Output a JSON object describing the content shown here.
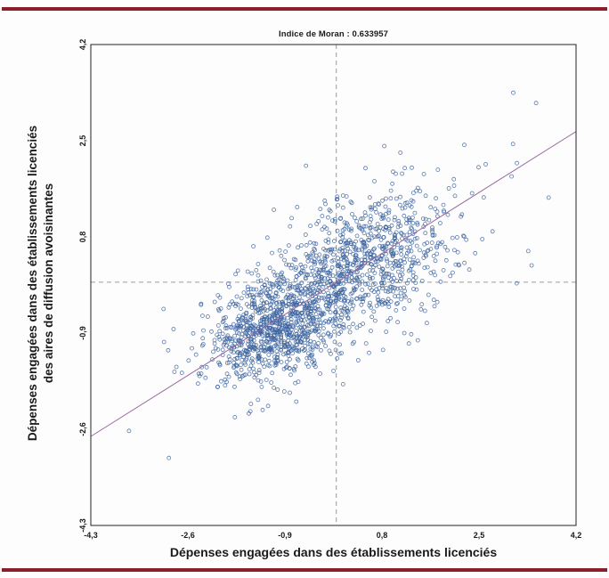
{
  "figure": {
    "accent_rule_color": "#8b1e28",
    "background_color": "#fdfdfd"
  },
  "chart_data": {
    "type": "scatter",
    "title": "Indice de Moran : 0.633957",
    "moran_index": 0.633957,
    "xlabel": "Dépenses engagées dans des établissements licenciés",
    "ylabel_line1": "Dépenses engagées dans des établissements licenciés",
    "ylabel_line2": "des aires de diffusion avoisinantes",
    "xlim": [
      -4.3,
      4.2
    ],
    "ylim": [
      -4.3,
      4.2
    ],
    "x_ticks": [
      -4.3,
      -2.6,
      -0.9,
      0.8,
      2.5,
      4.2
    ],
    "y_ticks": [
      -4.3,
      -2.6,
      -0.9,
      0.8,
      2.5,
      4.2
    ],
    "tick_labels": [
      "-4,3",
      "-2,6",
      "-0,9",
      "0,8",
      "2,5",
      "4,2"
    ],
    "grid": false,
    "legend": "none",
    "mean_lines": {
      "x": 0,
      "y": 0,
      "style": "dashed"
    },
    "regression": {
      "slope": 0.633957,
      "intercept": 0
    },
    "point_style": {
      "color": "#3c64a0",
      "fill": "none",
      "radius": 2,
      "opacity": 0.85
    },
    "line_color": "#9a6b9e",
    "dashed_color": "#9a9a9a",
    "frame_color": "#222222",
    "points_distribution": {
      "note": "dense cloud of ~1800 unlabeled points; reproduced as seeded bivariate mixture matching visible distribution",
      "seed": 42,
      "clusters": [
        {
          "n": 900,
          "cx": -1.05,
          "cy": -0.78,
          "sx": 0.6,
          "sy": 0.48,
          "rho": 0.35
        },
        {
          "n": 780,
          "cx": 0.45,
          "cy": 0.35,
          "sx": 0.8,
          "sy": 0.62,
          "rho": 0.45
        },
        {
          "n": 140,
          "cx": 0.2,
          "cy": 0.1,
          "sx": 1.6,
          "sy": 1.1,
          "rho": 0.6
        }
      ]
    }
  }
}
